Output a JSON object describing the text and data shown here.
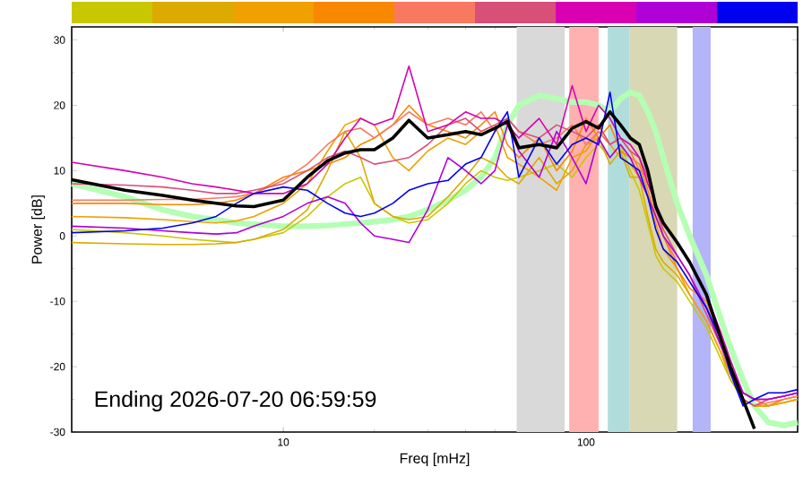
{
  "chart_data": {
    "type": "line",
    "xlabel": "Freq [mHz]",
    "ylabel": "Power [dB]",
    "log": "x",
    "xlim": [
      2,
      500
    ],
    "ylim": [
      -30,
      32
    ],
    "xticks": [
      10,
      100
    ],
    "yticks": [
      -30,
      -20,
      -10,
      0,
      10,
      20,
      30
    ],
    "annotations": [
      "Ending 2026-07-20 06:59:59"
    ],
    "bands": [
      {
        "axis": "x",
        "from": 59,
        "to": 85,
        "color": "#d9d9d9"
      },
      {
        "axis": "x",
        "from": 88,
        "to": 110,
        "color": "#ffb0b0"
      },
      {
        "axis": "x",
        "from": 118,
        "to": 139,
        "color": "#b0dcdc"
      },
      {
        "axis": "x",
        "from": 139,
        "to": 200,
        "color": "#d8d8b4"
      },
      {
        "axis": "x",
        "from": 225,
        "to": 258,
        "color": "#b4b4f8"
      }
    ],
    "x": [
      2,
      3,
      4,
      5,
      6,
      7,
      8,
      10,
      12,
      14,
      16,
      18,
      20,
      23,
      26,
      30,
      35,
      40,
      45,
      50,
      55,
      60,
      70,
      80,
      90,
      100,
      110,
      120,
      130,
      140,
      150,
      160,
      170,
      180,
      200,
      220,
      250,
      280,
      300,
      330,
      360,
      400,
      450,
      500
    ],
    "series": [
      {
        "color": "#b4ffb4",
        "values": [
          8,
          6,
          4,
          3,
          2.5,
          2,
          1.8,
          1.5,
          1.5,
          1.6,
          1.8,
          2,
          2.2,
          2.5,
          3,
          4,
          5.5,
          7,
          9,
          12,
          17,
          20,
          21.5,
          21,
          20.5,
          20.5,
          20,
          19,
          21,
          22,
          21.5,
          19,
          16,
          12,
          5,
          0,
          -6,
          -13,
          -17,
          -22,
          -26,
          -28.5,
          -29,
          -28.5
        ]
      },
      {
        "color": "#c8c800",
        "values": [
          1,
          0.5,
          0,
          -0.5,
          -0.8,
          -1,
          -0.5,
          0.5,
          3,
          6,
          8,
          9,
          5,
          3,
          2,
          2.5,
          5,
          8,
          10,
          9,
          8.5,
          9,
          10,
          11,
          9,
          12,
          14,
          12,
          14,
          10,
          7,
          2,
          -3,
          -5,
          -7,
          -10,
          -14,
          -19,
          -22,
          -25,
          -26,
          -26,
          -25.5,
          -25
        ]
      },
      {
        "color": "#dcaa00",
        "values": [
          -1,
          -1.2,
          -1.3,
          -1.3,
          -1.2,
          -1,
          -0.5,
          1,
          4,
          10,
          16,
          12,
          5,
          3,
          2.5,
          3,
          6,
          9,
          12,
          11,
          9,
          8,
          12,
          8,
          10,
          14,
          15,
          11,
          13,
          9,
          9,
          3,
          -2,
          -4,
          -6,
          -9,
          -13,
          -18,
          -22,
          -25,
          -26,
          -26,
          -25.5,
          -25
        ]
      },
      {
        "color": "#f0a000",
        "values": [
          3,
          2.8,
          2.5,
          2.2,
          2,
          2.3,
          3,
          5,
          8,
          13,
          17,
          18,
          17,
          12,
          10,
          13,
          15,
          14,
          16,
          17,
          12,
          11,
          9,
          7,
          12,
          13,
          16,
          14,
          12,
          11,
          9,
          6,
          2,
          -2,
          -5,
          -9,
          -13,
          -18,
          -21,
          -25,
          -26,
          -26,
          -25.5,
          -25
        ]
      },
      {
        "color": "#f88800",
        "values": [
          5,
          5,
          4.8,
          4.8,
          5,
          5.5,
          6.5,
          9,
          10,
          11,
          12,
          14,
          15,
          17,
          20,
          17,
          16,
          15,
          17,
          19,
          14,
          12,
          15,
          10,
          13,
          18,
          15,
          17,
          13,
          12,
          11,
          7,
          3,
          0,
          -5,
          -8,
          -10,
          -16,
          -20,
          -24,
          -25,
          -26,
          -25,
          -24.5
        ]
      },
      {
        "color": "#f87860",
        "values": [
          5.5,
          5.5,
          5.6,
          5.6,
          5.8,
          6,
          6.5,
          8.5,
          11,
          14,
          16,
          16.5,
          15,
          17,
          19,
          17,
          18,
          17,
          19,
          16,
          18,
          16,
          14,
          15,
          17,
          14,
          16,
          14,
          15,
          13,
          10,
          9,
          5,
          0,
          -4,
          -7,
          -11,
          -17,
          -21,
          -25,
          -26,
          -25.5,
          -25,
          -24.5
        ]
      },
      {
        "color": "#d85078",
        "values": [
          8,
          7.8,
          7.5,
          7,
          6.5,
          6.5,
          7,
          8,
          10,
          12,
          13,
          12,
          11,
          11.5,
          12,
          14,
          17,
          18,
          16,
          17,
          18,
          16,
          15,
          17,
          16,
          15,
          17,
          14,
          15,
          13,
          12,
          9,
          4,
          1,
          -3,
          -6,
          -12,
          -17,
          -21,
          -25,
          -26,
          -25,
          -24.5,
          -24
        ]
      },
      {
        "color": "#d800b0",
        "values": [
          11.3,
          10,
          9,
          8,
          7.5,
          7,
          6.5,
          6.5,
          8,
          11,
          15,
          18,
          17,
          18,
          26,
          16,
          17,
          19,
          18,
          18,
          17,
          15,
          18,
          14,
          23,
          16,
          20,
          18,
          15,
          14,
          12,
          8,
          5,
          2,
          -1,
          -4,
          -9,
          -15,
          -19,
          -24,
          -25,
          -25,
          -24.5,
          -24
        ]
      },
      {
        "color": "#b000d8",
        "values": [
          1.5,
          1.2,
          0.8,
          0.5,
          0.3,
          0.5,
          1.5,
          3,
          5,
          6,
          5,
          2,
          0,
          -0.5,
          -1,
          4,
          12,
          10,
          8,
          10,
          17,
          13,
          9,
          16,
          12,
          8,
          15,
          12,
          14,
          12,
          9,
          6,
          3,
          0,
          -3,
          -6,
          -11,
          -17,
          -20,
          -24,
          -25,
          -25,
          -24.5,
          -24
        ]
      },
      {
        "color": "#0000f0",
        "values": [
          0.5,
          0.8,
          1.2,
          2,
          3,
          5,
          6.5,
          7.5,
          7,
          5,
          3.5,
          3,
          3.5,
          5,
          7,
          8,
          8.5,
          11,
          12,
          16,
          19,
          9,
          15,
          11,
          14,
          15,
          14,
          22,
          12,
          11,
          10,
          6,
          1,
          -2,
          -4,
          -7,
          -11,
          -16,
          -21,
          -26,
          -25,
          -24,
          -24,
          -23.5
        ]
      },
      {
        "color": "#000000",
        "values": [
          8.6,
          7,
          6.2,
          5.5,
          5,
          4.6,
          4.5,
          5.5,
          9,
          11.5,
          12.7,
          13.2,
          13.2,
          15,
          17.7,
          15,
          15.5,
          16,
          15.5,
          16.5,
          17.5,
          13.5,
          14,
          13.5,
          16.5,
          17.5,
          16.5,
          19,
          17,
          15,
          14,
          10,
          4.5,
          2,
          -1,
          -4,
          -9,
          -16,
          -20,
          -25,
          -29.5,
          null,
          null,
          null
        ]
      }
    ]
  }
}
